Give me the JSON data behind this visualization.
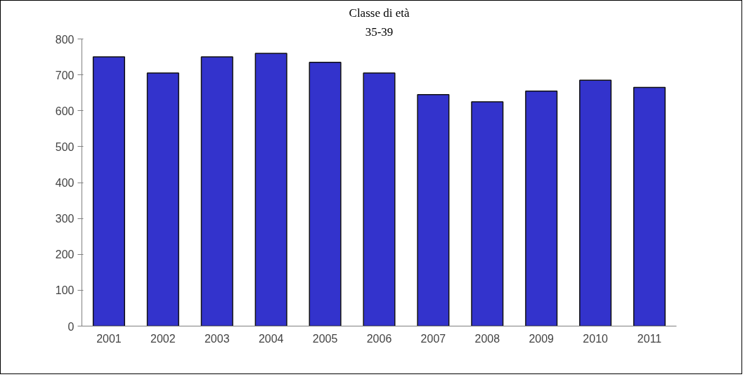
{
  "chart_data": {
    "type": "bar",
    "title": "Classe di età",
    "subtitle": "35-39",
    "categories": [
      "2001",
      "2002",
      "2003",
      "2004",
      "2005",
      "2006",
      "2007",
      "2008",
      "2009",
      "2010",
      "2011"
    ],
    "values": [
      750,
      705,
      750,
      760,
      735,
      705,
      645,
      625,
      655,
      685,
      665
    ],
    "color": "#3333cc",
    "ylim": [
      0,
      800
    ],
    "yticks": [
      0,
      100,
      200,
      300,
      400,
      500,
      600,
      700,
      800
    ]
  }
}
